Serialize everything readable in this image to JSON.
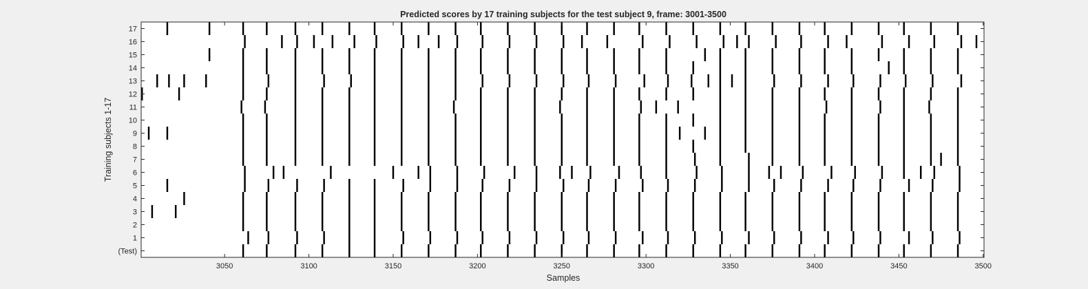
{
  "chart_data": {
    "type": "heatmap",
    "title": "Predicted scores by 17 training subjects for the test subject 9, frame: 3001-3500",
    "xlabel": "Samples",
    "ylabel": "Training subjects 1-17",
    "xlim": [
      3001,
      3500
    ],
    "x_ticks": [
      3050,
      3100,
      3150,
      3200,
      3250,
      3300,
      3350,
      3400,
      3450,
      3500
    ],
    "rows": [
      "(Test)",
      "1",
      "2",
      "3",
      "4",
      "5",
      "6",
      "7",
      "8",
      "9",
      "10",
      "11",
      "12",
      "13",
      "14",
      "15",
      "16",
      "17"
    ],
    "colors": {
      "mark": "#000000",
      "background": "#ffffff",
      "figure": "#f0f0f0"
    },
    "series": [
      {
        "row": "(Test)",
        "x": [
          3061,
          3075,
          3092,
          3108,
          3124,
          3139,
          3155,
          3171,
          3187,
          3202,
          3218,
          3234,
          3250,
          3265,
          3281,
          3296,
          3312,
          3328,
          3344,
          3359,
          3375,
          3391,
          3406,
          3422,
          3438,
          3453,
          3469,
          3485
        ]
      },
      {
        "row": "1",
        "x": [
          3064,
          3076,
          3093,
          3109,
          3124,
          3139,
          3156,
          3172,
          3188,
          3203,
          3219,
          3235,
          3251,
          3266,
          3282,
          3298,
          3313,
          3329,
          3345,
          3361,
          3376,
          3392,
          3408,
          3423,
          3439,
          3456,
          3470,
          3486
        ]
      },
      {
        "row": "2",
        "x": [
          3061,
          3075,
          3092,
          3108,
          3124,
          3139,
          3155,
          3171,
          3187,
          3202,
          3218,
          3234,
          3250,
          3265,
          3281,
          3296,
          3312,
          3328,
          3344,
          3359,
          3375,
          3391,
          3406,
          3422,
          3438,
          3453,
          3469,
          3485
        ]
      },
      {
        "row": "3",
        "x": [
          3007,
          3021,
          3061,
          3075,
          3092,
          3108,
          3124,
          3139,
          3155,
          3171,
          3187,
          3202,
          3218,
          3234,
          3250,
          3265,
          3281,
          3296,
          3312,
          3328,
          3344,
          3359,
          3375,
          3391,
          3406,
          3422,
          3438,
          3453,
          3469,
          3485
        ]
      },
      {
        "row": "4",
        "x": [
          3026,
          3061,
          3075,
          3092,
          3108,
          3124,
          3139,
          3155,
          3171,
          3187,
          3202,
          3218,
          3234,
          3250,
          3265,
          3281,
          3296,
          3312,
          3328,
          3344,
          3359,
          3375,
          3391,
          3406,
          3422,
          3438,
          3453,
          3469,
          3485
        ]
      },
      {
        "row": "5",
        "x": [
          3016,
          3062,
          3076,
          3093,
          3109,
          3124,
          3139,
          3156,
          3172,
          3188,
          3203,
          3219,
          3235,
          3251,
          3266,
          3282,
          3298,
          3313,
          3329,
          3345,
          3361,
          3376,
          3392,
          3408,
          3423,
          3439,
          3456,
          3470,
          3486
        ]
      },
      {
        "row": "6",
        "x": [
          3062,
          3079,
          3085,
          3113,
          3150,
          3165,
          3172,
          3188,
          3204,
          3222,
          3235,
          3249,
          3256,
          3267,
          3284,
          3297,
          3312,
          3330,
          3345,
          3361,
          3373,
          3380,
          3393,
          3410,
          3424,
          3440,
          3453,
          3463,
          3471,
          3486
        ]
      },
      {
        "row": "7",
        "x": [
          3061,
          3075,
          3092,
          3108,
          3124,
          3139,
          3155,
          3171,
          3187,
          3202,
          3218,
          3234,
          3250,
          3265,
          3281,
          3296,
          3312,
          3329,
          3344,
          3361,
          3375,
          3391,
          3406,
          3422,
          3438,
          3453,
          3469,
          3475,
          3485
        ]
      },
      {
        "row": "8",
        "x": [
          3061,
          3075,
          3092,
          3108,
          3124,
          3139,
          3155,
          3171,
          3187,
          3202,
          3218,
          3234,
          3250,
          3265,
          3281,
          3296,
          3312,
          3328,
          3344,
          3359,
          3375,
          3391,
          3406,
          3422,
          3438,
          3453,
          3469,
          3485
        ]
      },
      {
        "row": "9",
        "x": [
          3005,
          3016,
          3061,
          3075,
          3092,
          3108,
          3124,
          3139,
          3155,
          3171,
          3187,
          3202,
          3218,
          3234,
          3250,
          3265,
          3281,
          3296,
          3312,
          3320,
          3335,
          3344,
          3359,
          3375,
          3391,
          3406,
          3422,
          3438,
          3453,
          3469,
          3485
        ]
      },
      {
        "row": "10",
        "x": [
          3061,
          3075,
          3092,
          3108,
          3124,
          3139,
          3155,
          3171,
          3187,
          3202,
          3218,
          3234,
          3250,
          3265,
          3281,
          3296,
          3312,
          3328,
          3344,
          3359,
          3375,
          3391,
          3406,
          3422,
          3438,
          3453,
          3469,
          3485
        ]
      },
      {
        "row": "11",
        "x": [
          3060,
          3074,
          3092,
          3108,
          3124,
          3139,
          3155,
          3171,
          3186,
          3202,
          3218,
          3234,
          3249,
          3265,
          3281,
          3297,
          3306,
          3319,
          3344,
          3359,
          3375,
          3391,
          3407,
          3422,
          3439,
          3453,
          3468,
          3485
        ]
      },
      {
        "row": "12",
        "x": [
          3001,
          3023,
          3061,
          3075,
          3092,
          3108,
          3124,
          3139,
          3155,
          3171,
          3187,
          3202,
          3218,
          3234,
          3250,
          3265,
          3281,
          3296,
          3312,
          3328,
          3344,
          3359,
          3375,
          3391,
          3406,
          3422,
          3438,
          3453,
          3469,
          3485
        ]
      },
      {
        "row": "13",
        "x": [
          3010,
          3017,
          3026,
          3039,
          3061,
          3076,
          3092,
          3109,
          3125,
          3139,
          3155,
          3171,
          3187,
          3203,
          3219,
          3235,
          3251,
          3266,
          3282,
          3299,
          3313,
          3327,
          3337,
          3344,
          3351,
          3359,
          3376,
          3392,
          3408,
          3423,
          3439,
          3454,
          3470,
          3487
        ]
      },
      {
        "row": "14",
        "x": [
          3061,
          3075,
          3092,
          3108,
          3124,
          3139,
          3155,
          3171,
          3187,
          3202,
          3218,
          3234,
          3250,
          3265,
          3281,
          3296,
          3312,
          3328,
          3344,
          3359,
          3375,
          3391,
          3406,
          3422,
          3444,
          3453,
          3469,
          3485
        ]
      },
      {
        "row": "15",
        "x": [
          3041,
          3061,
          3075,
          3092,
          3108,
          3124,
          3139,
          3155,
          3171,
          3187,
          3202,
          3218,
          3234,
          3250,
          3265,
          3281,
          3296,
          3312,
          3335,
          3344,
          3359,
          3375,
          3391,
          3406,
          3422,
          3438,
          3453,
          3469,
          3485
        ]
      },
      {
        "row": "16",
        "x": [
          3062,
          3084,
          3093,
          3103,
          3114,
          3127,
          3140,
          3156,
          3165,
          3177,
          3188,
          3203,
          3219,
          3235,
          3251,
          3262,
          3277,
          3298,
          3314,
          3330,
          3346,
          3354,
          3361,
          3377,
          3392,
          3408,
          3419,
          3440,
          3456,
          3471,
          3487,
          3496
        ]
      },
      {
        "row": "17",
        "x": [
          3016,
          3041,
          3061,
          3075,
          3092,
          3108,
          3124,
          3139,
          3155,
          3171,
          3187,
          3202,
          3218,
          3234,
          3250,
          3265,
          3281,
          3296,
          3312,
          3328,
          3344,
          3359,
          3375,
          3391,
          3406,
          3422,
          3438,
          3453,
          3469,
          3485
        ]
      }
    ]
  }
}
